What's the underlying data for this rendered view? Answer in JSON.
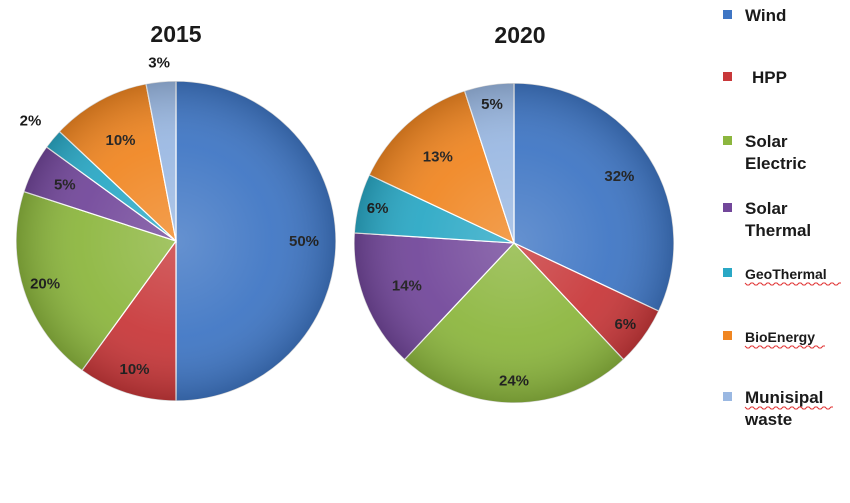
{
  "colors": {
    "Wind": "#3f76c4",
    "HPP": "#c8383a",
    "Solar Electric": "#8cb63e",
    "Solar Thermal": "#72479a",
    "GeoThermal": "#2aa8c5",
    "BioEnergy": "#f08622",
    "Munisipal waste": "#9ab8e2"
  },
  "chart_data": [
    {
      "type": "pie",
      "title": "2015",
      "slices": [
        {
          "category": "Wind",
          "value": 50,
          "label": "50%"
        },
        {
          "category": "HPP",
          "value": 10,
          "label": "10%"
        },
        {
          "category": "Solar Electric",
          "value": 20,
          "label": "20%"
        },
        {
          "category": "Solar Thermal",
          "value": 5,
          "label": "5%"
        },
        {
          "category": "GeoThermal",
          "value": 2,
          "label": "2%"
        },
        {
          "category": "BioEnergy",
          "value": 10,
          "label": "10%"
        },
        {
          "category": "Munisipal waste",
          "value": 3,
          "label": "3%"
        }
      ]
    },
    {
      "type": "pie",
      "title": "2020",
      "slices": [
        {
          "category": "Wind",
          "value": 32,
          "label": "32%"
        },
        {
          "category": "HPP",
          "value": 6,
          "label": "6%"
        },
        {
          "category": "Solar Electric",
          "value": 24,
          "label": "24%"
        },
        {
          "category": "Solar Thermal",
          "value": 14,
          "label": "14%"
        },
        {
          "category": "GeoThermal",
          "value": 6,
          "label": "6%"
        },
        {
          "category": "BioEnergy",
          "value": 13,
          "label": "13%"
        },
        {
          "category": "Munisipal waste",
          "value": 5,
          "label": "5%"
        }
      ]
    }
  ],
  "legend": {
    "placement": "right",
    "items": [
      {
        "category": "Wind",
        "lines": [
          "Wind"
        ]
      },
      {
        "category": "HPP",
        "lines": [
          "HPP"
        ]
      },
      {
        "category": "Solar Electric",
        "lines": [
          "Solar",
          "Electric"
        ]
      },
      {
        "category": "Solar Thermal",
        "lines": [
          "Solar",
          "Thermal"
        ]
      },
      {
        "category": "GeoThermal",
        "lines": [
          "GeoThermal"
        ]
      },
      {
        "category": "BioEnergy",
        "lines": [
          "BioEnergy"
        ]
      },
      {
        "category": "Munisipal waste",
        "lines": [
          "Munisipal",
          "waste"
        ]
      }
    ]
  }
}
